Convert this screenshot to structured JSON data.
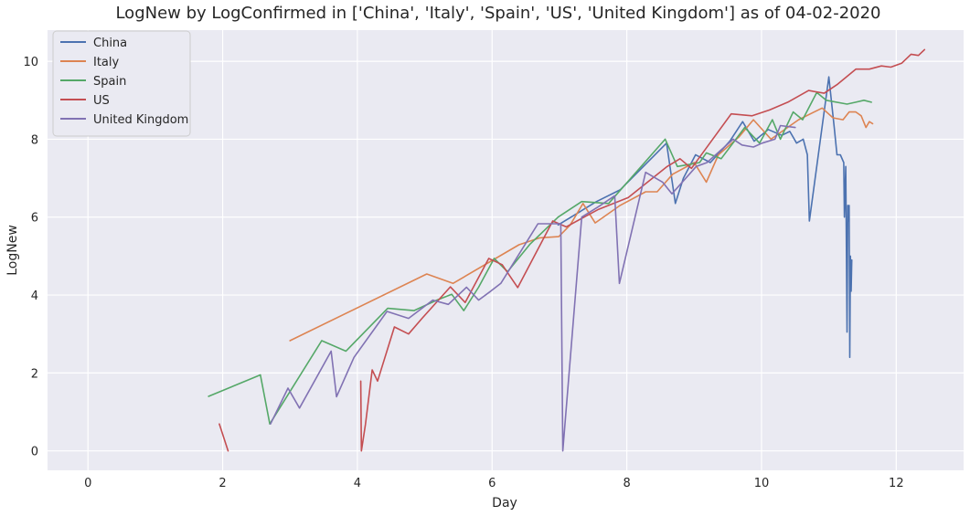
{
  "chart_data": {
    "type": "line",
    "title": "LogNew by LogConfirmed in ['China', 'Italy', 'Spain', 'US', 'United Kingdom'] as of 04-02-2020",
    "xlabel": "Day",
    "ylabel": "LogNew",
    "xlim": [
      -0.6,
      13.0
    ],
    "ylim": [
      -0.5,
      10.8
    ],
    "xticks": [
      0,
      2,
      4,
      6,
      8,
      10,
      12
    ],
    "yticks": [
      0,
      2,
      4,
      6,
      8,
      10
    ],
    "grid": true,
    "legend": "top-left",
    "background": "#eaeaf2",
    "series": [
      {
        "name": "China",
        "color": "#4c72b0",
        "points": [
          [
            6.98,
            5.8
          ],
          [
            7.55,
            6.4
          ],
          [
            7.9,
            6.7
          ],
          [
            8.59,
            7.9
          ],
          [
            8.72,
            6.35
          ],
          [
            8.84,
            7.0
          ],
          [
            9.02,
            7.6
          ],
          [
            9.24,
            7.4
          ],
          [
            9.53,
            7.95
          ],
          [
            9.72,
            8.45
          ],
          [
            9.89,
            7.95
          ],
          [
            10.1,
            8.25
          ],
          [
            10.3,
            8.1
          ],
          [
            10.42,
            8.2
          ],
          [
            10.52,
            7.9
          ],
          [
            10.62,
            8.0
          ],
          [
            10.68,
            7.6
          ],
          [
            10.71,
            5.9
          ],
          [
            11.0,
            9.6
          ],
          [
            11.08,
            8.3
          ],
          [
            11.12,
            7.6
          ],
          [
            11.17,
            7.6
          ],
          [
            11.22,
            7.4
          ],
          [
            11.23,
            6.0
          ],
          [
            11.25,
            7.3
          ],
          [
            11.27,
            3.05
          ],
          [
            11.28,
            6.3
          ],
          [
            11.29,
            5.9
          ],
          [
            11.3,
            6.3
          ],
          [
            11.31,
            2.4
          ],
          [
            11.32,
            5.0
          ],
          [
            11.33,
            4.1
          ],
          [
            11.34,
            4.9
          ]
        ]
      },
      {
        "name": "Italy",
        "color": "#dd8452",
        "points": [
          [
            3.0,
            2.83
          ],
          [
            5.03,
            4.54
          ],
          [
            5.42,
            4.3
          ],
          [
            6.4,
            5.29
          ],
          [
            6.71,
            5.47
          ],
          [
            6.99,
            5.5
          ],
          [
            7.16,
            5.8
          ],
          [
            7.35,
            6.35
          ],
          [
            7.53,
            5.85
          ],
          [
            7.9,
            6.3
          ],
          [
            8.28,
            6.65
          ],
          [
            8.45,
            6.65
          ],
          [
            8.68,
            7.1
          ],
          [
            9.0,
            7.4
          ],
          [
            9.18,
            6.9
          ],
          [
            9.36,
            7.6
          ],
          [
            9.66,
            8.05
          ],
          [
            9.88,
            8.5
          ],
          [
            10.14,
            8.0
          ],
          [
            10.55,
            8.5
          ],
          [
            10.9,
            8.8
          ],
          [
            11.06,
            8.55
          ],
          [
            11.21,
            8.5
          ],
          [
            11.3,
            8.7
          ],
          [
            11.4,
            8.7
          ],
          [
            11.48,
            8.6
          ],
          [
            11.55,
            8.3
          ],
          [
            11.6,
            8.45
          ],
          [
            11.65,
            8.4
          ]
        ]
      },
      {
        "name": "Spain",
        "color": "#55a868",
        "points": [
          [
            1.79,
            1.4
          ],
          [
            2.56,
            1.95
          ],
          [
            2.7,
            0.69
          ],
          [
            3.47,
            2.83
          ],
          [
            3.83,
            2.56
          ],
          [
            4.45,
            3.66
          ],
          [
            4.84,
            3.6
          ],
          [
            5.18,
            3.87
          ],
          [
            5.4,
            4.02
          ],
          [
            5.58,
            3.6
          ],
          [
            5.8,
            4.2
          ],
          [
            6.03,
            4.94
          ],
          [
            6.23,
            4.6
          ],
          [
            6.56,
            5.3
          ],
          [
            6.98,
            6.0
          ],
          [
            7.33,
            6.4
          ],
          [
            7.73,
            6.35
          ],
          [
            8.57,
            8.0
          ],
          [
            8.75,
            7.3
          ],
          [
            9.08,
            7.4
          ],
          [
            9.18,
            7.65
          ],
          [
            9.4,
            7.5
          ],
          [
            9.75,
            8.3
          ],
          [
            9.97,
            7.9
          ],
          [
            10.16,
            8.5
          ],
          [
            10.28,
            8.0
          ],
          [
            10.47,
            8.7
          ],
          [
            10.61,
            8.5
          ],
          [
            10.82,
            9.2
          ],
          [
            10.96,
            9.0
          ],
          [
            11.27,
            8.9
          ],
          [
            11.4,
            8.95
          ],
          [
            11.52,
            9.0
          ],
          [
            11.63,
            8.95
          ]
        ]
      },
      {
        "name": "US",
        "color": "#c44e52",
        "points_groups": [
          [
            [
              1.95,
              0.69
            ],
            [
              2.08,
              0.0
            ]
          ],
          [
            [
              4.05,
              1.79
            ],
            [
              4.06,
              0.0
            ],
            [
              4.12,
              0.69
            ],
            [
              4.22,
              2.08
            ],
            [
              4.3,
              1.79
            ],
            [
              4.55,
              3.18
            ],
            [
              4.76,
              3.0
            ],
            [
              4.96,
              3.4
            ],
            [
              5.38,
              4.21
            ],
            [
              5.6,
              3.81
            ],
            [
              5.95,
              4.94
            ],
            [
              6.15,
              4.78
            ],
            [
              6.38,
              4.19
            ],
            [
              6.9,
              5.9
            ],
            [
              7.1,
              5.75
            ],
            [
              7.58,
              6.2
            ],
            [
              8.02,
              6.5
            ],
            [
              8.6,
              7.3
            ],
            [
              8.79,
              7.5
            ],
            [
              8.96,
              7.25
            ],
            [
              9.55,
              8.65
            ],
            [
              9.86,
              8.6
            ],
            [
              10.12,
              8.75
            ],
            [
              10.39,
              8.95
            ],
            [
              10.7,
              9.25
            ],
            [
              10.93,
              9.18
            ],
            [
              11.12,
              9.4
            ],
            [
              11.4,
              9.8
            ],
            [
              11.6,
              9.8
            ],
            [
              11.78,
              9.88
            ],
            [
              11.92,
              9.85
            ],
            [
              12.08,
              9.95
            ],
            [
              12.22,
              10.18
            ],
            [
              12.33,
              10.15
            ],
            [
              12.42,
              10.3
            ]
          ]
        ]
      },
      {
        "name": "United Kingdom",
        "color": "#8172b3",
        "points": [
          [
            2.71,
            0.69
          ],
          [
            2.97,
            1.61
          ],
          [
            3.14,
            1.1
          ],
          [
            3.61,
            2.56
          ],
          [
            3.69,
            1.39
          ],
          [
            3.95,
            2.4
          ],
          [
            4.44,
            3.58
          ],
          [
            4.76,
            3.4
          ],
          [
            5.12,
            3.87
          ],
          [
            5.35,
            3.76
          ],
          [
            5.62,
            4.2
          ],
          [
            5.8,
            3.87
          ],
          [
            5.98,
            4.1
          ],
          [
            6.13,
            4.3
          ],
          [
            6.13,
            4.3
          ],
          [
            6.68,
            5.83
          ],
          [
            7.02,
            5.83
          ],
          [
            7.05,
            0.0
          ],
          [
            7.33,
            6.0
          ],
          [
            7.59,
            6.28
          ],
          [
            7.82,
            6.55
          ],
          [
            7.89,
            4.3
          ],
          [
            8.28,
            7.15
          ],
          [
            8.53,
            6.9
          ],
          [
            8.67,
            6.6
          ],
          [
            9.03,
            7.3
          ],
          [
            9.19,
            7.4
          ],
          [
            9.58,
            8.0
          ],
          [
            9.71,
            7.85
          ],
          [
            9.88,
            7.8
          ],
          [
            10.01,
            7.9
          ],
          [
            10.2,
            8.0
          ],
          [
            10.28,
            8.35
          ],
          [
            10.5,
            8.3
          ]
        ]
      }
    ]
  }
}
